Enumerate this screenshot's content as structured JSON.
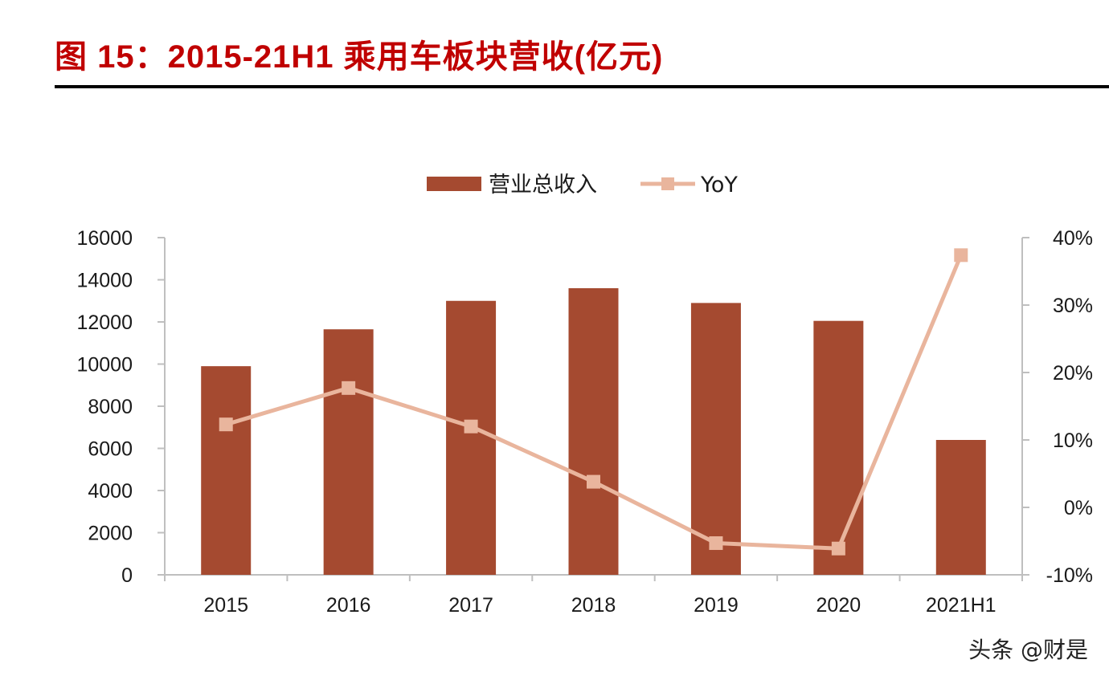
{
  "figure_title": "图 15：2015-21H1 乘用车板块营收(亿元)",
  "watermark": "头条 @财是",
  "colors": {
    "bar": "#a54a30",
    "line": "#e9b59d",
    "title": "#c00000",
    "axis": "#bfbfbf"
  },
  "chart_data": {
    "type": "bar",
    "categories": [
      "2015",
      "2016",
      "2017",
      "2018",
      "2019",
      "2020",
      "2021H1"
    ],
    "series": [
      {
        "name": "营业总收入",
        "type": "bar",
        "axis": "left",
        "values": [
          9900,
          11650,
          13000,
          13600,
          12900,
          12050,
          6400
        ]
      },
      {
        "name": "YoY",
        "type": "line",
        "axis": "right",
        "marker": "square",
        "values": [
          12.3,
          17.7,
          12.0,
          3.8,
          -5.3,
          -6.1,
          37.4
        ]
      }
    ],
    "y_left": {
      "min": 0,
      "max": 16000,
      "ticks": [
        "0",
        "2000",
        "4000",
        "6000",
        "8000",
        "10000",
        "12000",
        "14000",
        "16000"
      ]
    },
    "y_right": {
      "min": -10,
      "max": 40,
      "unit": "%",
      "ticks": [
        "-10%",
        "0%",
        "10%",
        "20%",
        "30%",
        "40%"
      ]
    },
    "legend": {
      "position": "top-center",
      "items": [
        "营业总收入",
        "YoY"
      ]
    },
    "grid": false
  }
}
